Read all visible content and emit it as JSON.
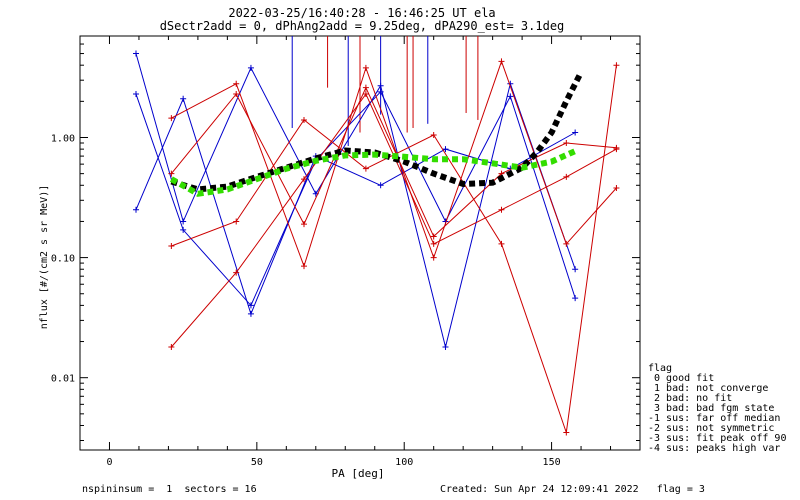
{
  "chart_data": {
    "type": "line",
    "title": "2022-03-25/16:40:28 - 16:46:25 UT ela",
    "subtitle": "dSectr2add = 0, dPhAng2add = 9.25deg, dPA290_est=   3.1deg",
    "xlabel": "PA [deg]",
    "ylabel": "nflux [#/(cm2 s sr MeV)]",
    "x_scale": "linear",
    "y_scale": "log",
    "xlim": [
      -10,
      180
    ],
    "ylim": [
      0.0025,
      7
    ],
    "x_ticks": [
      0,
      50,
      100,
      150
    ],
    "x_tick_labels": [
      "0",
      "50",
      "100",
      "150"
    ],
    "y_ticks": [
      0.01,
      0.1,
      1
    ],
    "y_tick_labels": [
      "0.01",
      "0.10",
      "1.00"
    ],
    "series": [
      {
        "color": "#0000cc",
        "style": "line-plus",
        "x": [
          9,
          25,
          48,
          70,
          92,
          114,
          136,
          158
        ],
        "y": [
          5,
          0.2,
          3.8,
          0.34,
          2.7,
          0.018,
          2.8,
          0.08
        ]
      },
      {
        "color": "#0000cc",
        "style": "line-plus",
        "x": [
          9,
          25,
          48,
          70,
          92,
          114,
          136,
          158
        ],
        "y": [
          2.3,
          0.17,
          0.04,
          0.65,
          2.4,
          0.2,
          2.2,
          0.046
        ]
      },
      {
        "color": "#0000cc",
        "style": "line-plus",
        "x": [
          9,
          25,
          48,
          70,
          92,
          114,
          136,
          158
        ],
        "y": [
          0.25,
          2.1,
          0.034,
          0.7,
          0.4,
          0.8,
          0.55,
          1.1
        ]
      },
      {
        "color": "#cc0000",
        "style": "line-plus",
        "x": [
          21,
          43,
          66,
          87,
          110,
          133,
          155,
          172
        ],
        "y": [
          1.45,
          2.8,
          0.085,
          3.8,
          0.1,
          4.3,
          0.13,
          0.38
        ]
      },
      {
        "color": "#cc0000",
        "style": "line-plus",
        "x": [
          21,
          43,
          66,
          87,
          110,
          133,
          155,
          172
        ],
        "y": [
          0.125,
          0.2,
          1.4,
          0.55,
          1.05,
          0.13,
          0.0035,
          4.0
        ]
      },
      {
        "color": "#cc0000",
        "style": "line-plus",
        "x": [
          21,
          43,
          66,
          87,
          110,
          133,
          155,
          172
        ],
        "y": [
          0.018,
          0.075,
          0.45,
          2.3,
          0.13,
          0.25,
          0.47,
          0.8
        ]
      },
      {
        "color": "#cc0000",
        "style": "line-plus",
        "x": [
          21,
          43,
          66,
          87,
          110,
          133,
          155,
          172
        ],
        "y": [
          0.5,
          2.3,
          0.19,
          2.6,
          0.15,
          0.5,
          0.9,
          0.82
        ]
      },
      {
        "color": "#000000",
        "style": "dashed-thick",
        "x": [
          21,
          30,
          40,
          50,
          60,
          70,
          80,
          90,
          100,
          110,
          120,
          130,
          140,
          145,
          150,
          155,
          160
        ],
        "y": [
          0.43,
          0.37,
          0.39,
          0.47,
          0.56,
          0.67,
          0.78,
          0.75,
          0.63,
          0.5,
          0.41,
          0.42,
          0.56,
          0.75,
          1.1,
          2.0,
          3.5
        ]
      },
      {
        "color": "#33dd00",
        "style": "dashed-thick",
        "x": [
          21,
          30,
          40,
          50,
          60,
          70,
          80,
          90,
          100,
          110,
          120,
          130,
          140,
          150,
          158
        ],
        "y": [
          0.45,
          0.34,
          0.37,
          0.45,
          0.55,
          0.64,
          0.71,
          0.72,
          0.69,
          0.66,
          0.66,
          0.61,
          0.56,
          0.63,
          0.77
        ]
      }
    ],
    "vertical_lines": [
      {
        "color": "#0000cc",
        "x": 62,
        "y_from": 1.2
      },
      {
        "color": "#0000cc",
        "x": 81,
        "y_from": 0.85
      },
      {
        "color": "#0000cc",
        "x": 92,
        "y_from": 1.55
      },
      {
        "color": "#0000cc",
        "x": 108,
        "y_from": 1.3
      },
      {
        "color": "#cc0000",
        "x": 74,
        "y_from": 2.6
      },
      {
        "color": "#cc0000",
        "x": 85,
        "y_from": 1.1
      },
      {
        "color": "#cc0000",
        "x": 101,
        "y_from": 1.1
      },
      {
        "color": "#cc0000",
        "x": 103,
        "y_from": 1.2
      },
      {
        "color": "#cc0000",
        "x": 121,
        "y_from": 1.6
      },
      {
        "color": "#cc0000",
        "x": 125,
        "y_from": 1.4
      }
    ],
    "legend": {
      "position": "lower-right outside plot",
      "lines": [
        "flag",
        " 0 good fit",
        " 1 bad: not converge",
        " 2 bad: no fit",
        " 3 bad: bad fgm state",
        "-1 sus: far off median",
        "-2 sus: not symmetric",
        "-3 sus: fit peak off 90",
        "-4 sus: peaks high var"
      ]
    }
  },
  "footer": {
    "left": "nspininsum =  1  sectors = 16",
    "right": "Created: Sun Apr 24 12:09:41 2022   flag = 3"
  }
}
